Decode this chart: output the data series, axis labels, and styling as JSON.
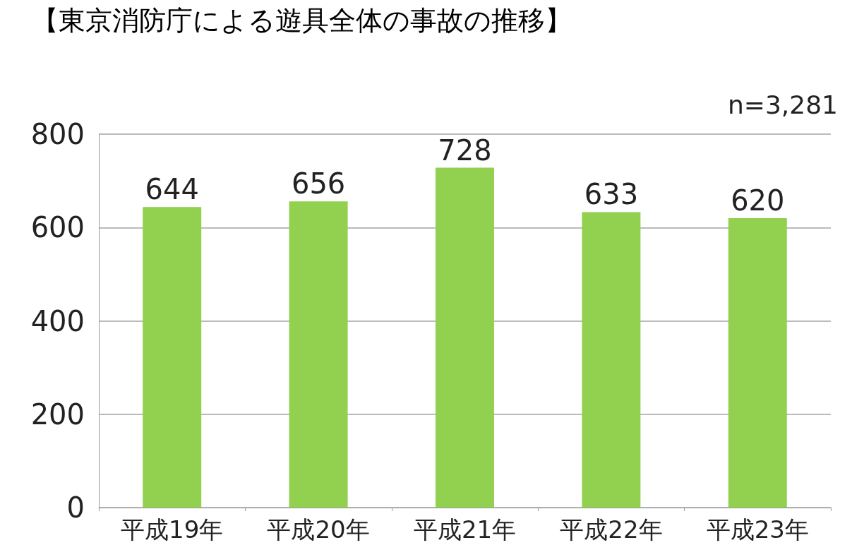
{
  "chart_data": {
    "type": "bar",
    "title": "【東京消防庁による遊具全体の事故の推移】",
    "categories": [
      "平成19年",
      "平成20年",
      "平成21年",
      "平成22年",
      "平成23年"
    ],
    "values": [
      644,
      656,
      728,
      633,
      620
    ],
    "color": "#92d050",
    "ylim": [
      0,
      800
    ],
    "yticks": [
      0,
      200,
      400,
      600,
      800
    ],
    "grid": "y",
    "data_labels": true,
    "annotations": [
      "n=3,281"
    ]
  }
}
